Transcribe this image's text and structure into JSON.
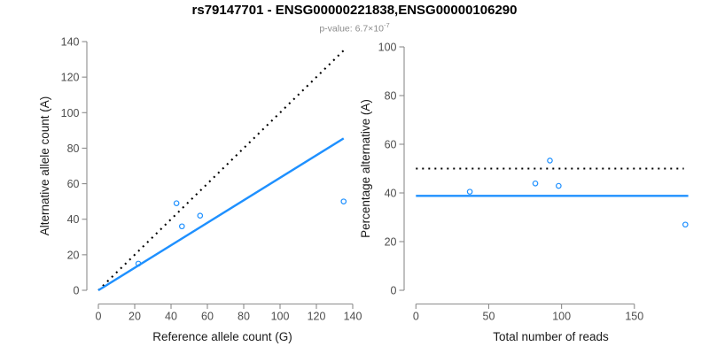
{
  "header": {
    "title": "rs79147701 - ENSG00000221838,ENSG00000106290",
    "subtitle_text": "p-value: 6.7×10",
    "subtitle_exponent": "-7"
  },
  "colors": {
    "accent_blue": "#1E90FF",
    "dotted_black": "#000000",
    "axis_line": "#8C8C8C",
    "tick_label": "#4D4D4D",
    "axis_title": "#1A1A1A",
    "subtitle_gray": "#8C8C8C",
    "background": "#FFFFFF"
  },
  "chart_data": [
    {
      "type": "scatter",
      "name": "allele-counts-scatter",
      "xlabel": "Reference allele count (G)",
      "ylabel": "Alternative allele count (A)",
      "xlim": [
        0,
        140
      ],
      "ylim": [
        0,
        140
      ],
      "xticks": [
        0,
        20,
        40,
        60,
        80,
        100,
        120,
        140
      ],
      "yticks": [
        0,
        20,
        40,
        60,
        80,
        100,
        120,
        140
      ],
      "grid": false,
      "legend": null,
      "point_color": "#1E90FF",
      "points": [
        [
          22,
          15
        ],
        [
          43,
          49
        ],
        [
          46,
          36
        ],
        [
          56,
          42
        ],
        [
          135,
          50
        ]
      ],
      "lines": [
        {
          "name": "identity-line",
          "style": "dotted",
          "color": "#000000",
          "x1": 0,
          "y1": 0,
          "x2": 135,
          "y2": 135
        },
        {
          "name": "regression-line",
          "style": "solid",
          "color": "#1E90FF",
          "x1": 0,
          "y1": 0,
          "x2": 135,
          "y2": 85.5
        }
      ]
    },
    {
      "type": "scatter",
      "name": "percentage-vs-reads-scatter",
      "xlabel": "Total number of reads",
      "ylabel": "Percentage alternative (A)",
      "xlim": [
        0,
        196
      ],
      "ylim": [
        0,
        100
      ],
      "xticks": [
        0,
        50,
        100,
        150
      ],
      "yticks": [
        0,
        20,
        40,
        60,
        80,
        100
      ],
      "grid": false,
      "legend": null,
      "point_color": "#1E90FF",
      "points": [
        [
          37,
          40.5
        ],
        [
          82,
          43.9
        ],
        [
          92,
          53.3
        ],
        [
          98,
          42.9
        ],
        [
          185,
          27
        ]
      ],
      "lines": [
        {
          "name": "expected-50pct-line",
          "style": "dotted",
          "color": "#000000",
          "x1": 0,
          "y1": 50,
          "x2": 184,
          "y2": 50
        },
        {
          "name": "mean-percentage-line",
          "style": "solid",
          "color": "#1E90FF",
          "x1": 0,
          "y1": 38.8,
          "x2": 187,
          "y2": 38.8
        }
      ]
    }
  ]
}
